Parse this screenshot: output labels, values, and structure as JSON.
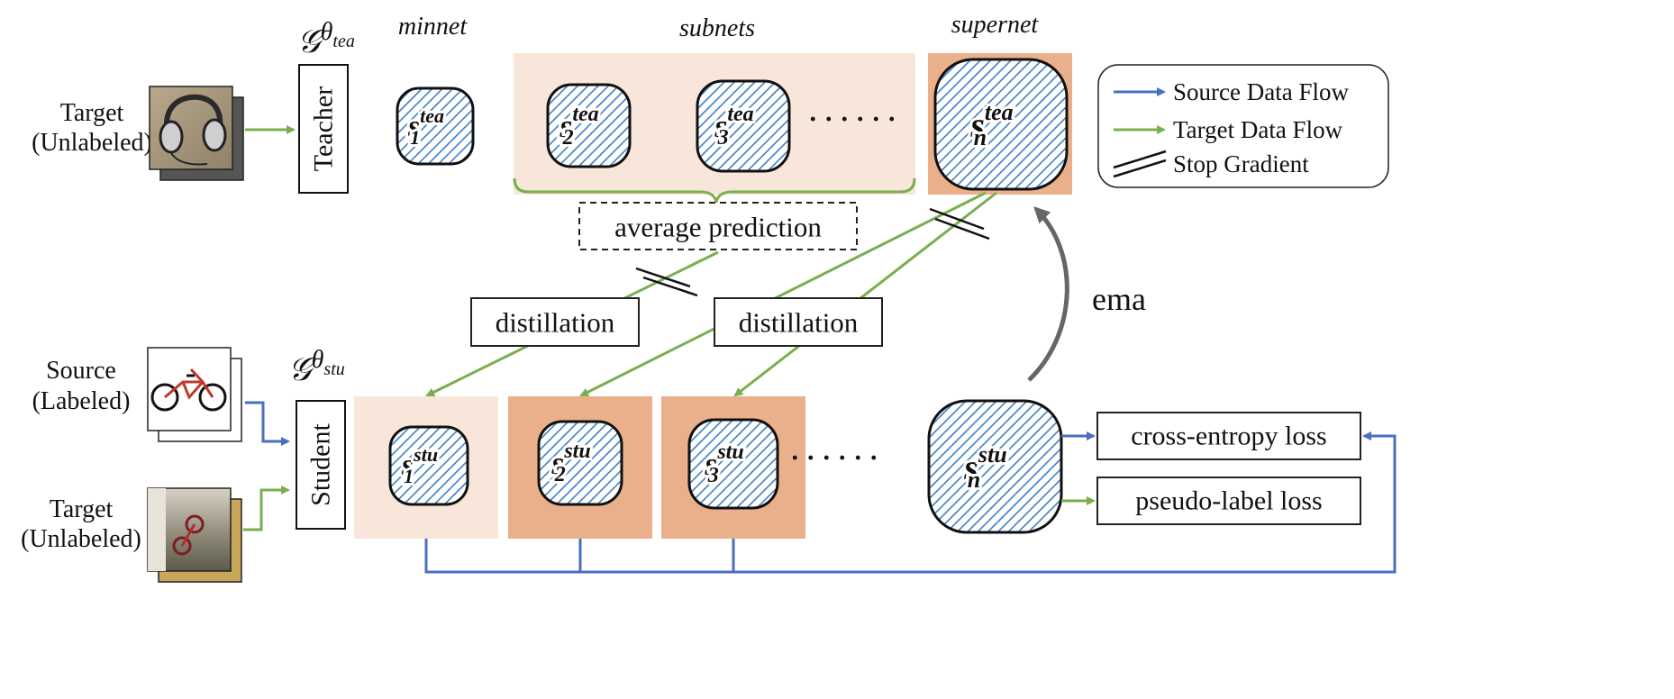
{
  "colors": {
    "source_flow": "#4a6fc0",
    "target_flow": "#7aae4e",
    "light_panel": "#f7e6d9",
    "dark_panel": "#eab08b",
    "ema_arrow": "#666666",
    "hatch": "#3d7fc4"
  },
  "teacher": {
    "input_label_line1": "Target",
    "input_label_line2": "(Unlabeled)",
    "network_label": "Teacher",
    "symbol_base": "𝒢",
    "symbol_sup": "θ",
    "symbol_sub": "tea"
  },
  "student": {
    "source_label_line1": "Source",
    "source_label_line2": "(Labeled)",
    "target_label_line1": "Target",
    "target_label_line2": "(Unlabeled)",
    "network_label": "Student",
    "symbol_base": "𝒢",
    "symbol_sup": "θ",
    "symbol_sub": "stu"
  },
  "headers": {
    "minnet": "minnet",
    "subnets": "subnets",
    "supernet": "supernet"
  },
  "teacher_nodes": [
    {
      "base": "s",
      "sup": "tea",
      "sub": "1"
    },
    {
      "base": "s",
      "sup": "tea",
      "sub": "2"
    },
    {
      "base": "s",
      "sup": "tea",
      "sub": "3"
    },
    {
      "base": "s",
      "sup": "tea",
      "sub": "n"
    }
  ],
  "student_nodes": [
    {
      "base": "s",
      "sup": "stu",
      "sub": "1"
    },
    {
      "base": "s",
      "sup": "stu",
      "sub": "2"
    },
    {
      "base": "s",
      "sup": "stu",
      "sub": "3"
    },
    {
      "base": "s",
      "sup": "stu",
      "sub": "n"
    }
  ],
  "ellipsis": "· · · · · ·",
  "average_prediction": "average prediction",
  "distillation_left": "distillation",
  "distillation_right": "distillation",
  "ema": "ema",
  "losses": {
    "cross_entropy": "cross-entropy loss",
    "pseudo_label": "pseudo-label loss"
  },
  "legend": {
    "source": "Source Data Flow",
    "target": "Target Data Flow",
    "stop": "Stop Gradient"
  }
}
